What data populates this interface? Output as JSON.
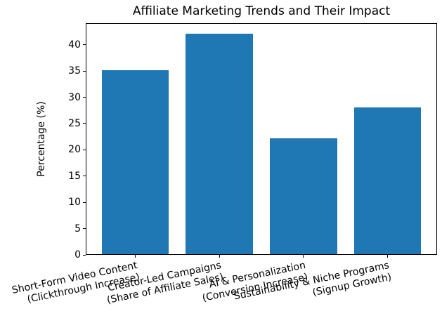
{
  "figure": {
    "title": "Affiliate Marketing Trends and Their Impact",
    "ylabel": "Percentage (%)"
  },
  "chart_data": {
    "type": "bar",
    "title": "Affiliate Marketing Trends and Their Impact",
    "xlabel": "",
    "ylabel": "Percentage (%)",
    "categories": [
      [
        "Short-Form Video Content",
        "(Clickthrough Increase)"
      ],
      [
        "Creator-Led Campaigns",
        "(Share of Affiliate Sales)"
      ],
      [
        "AI & Personalization",
        "(Conversion Increase)"
      ],
      [
        "Sustainability & Niche Programs",
        "(Signup Growth)"
      ]
    ],
    "values": [
      35,
      42,
      22,
      28
    ],
    "bar_color": "#1f77b4",
    "ylim": [
      0,
      44.1
    ],
    "yticks": [
      0,
      5,
      10,
      15,
      20,
      25,
      30,
      35,
      40
    ],
    "grid": false,
    "legend": null,
    "xtick_rotation_deg": 11.5
  }
}
